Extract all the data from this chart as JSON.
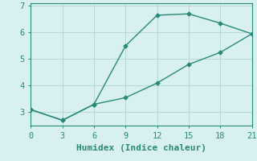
{
  "line1_x": [
    0,
    3,
    6,
    9,
    12,
    15,
    18,
    21
  ],
  "line1_y": [
    3.1,
    2.7,
    3.3,
    5.5,
    6.65,
    6.7,
    6.35,
    5.95
  ],
  "line2_x": [
    0,
    3,
    6,
    9,
    12,
    15,
    18,
    21
  ],
  "line2_y": [
    3.1,
    2.7,
    3.3,
    3.55,
    4.1,
    4.8,
    5.25,
    5.95
  ],
  "line_color": "#2a8a7a",
  "bg_color": "#d8f0f0",
  "grid_color": "#b8d8d8",
  "xlabel": "Humidex (Indice chaleur)",
  "xticks": [
    0,
    3,
    6,
    9,
    12,
    15,
    18,
    21
  ],
  "yticks": [
    3,
    4,
    5,
    6,
    7
  ],
  "xlim": [
    0,
    21
  ],
  "ylim": [
    2.5,
    7.1
  ],
  "xlabel_fontsize": 8,
  "tick_fontsize": 7.5,
  "marker": "D",
  "marker_size": 2.5,
  "linewidth": 1.0
}
